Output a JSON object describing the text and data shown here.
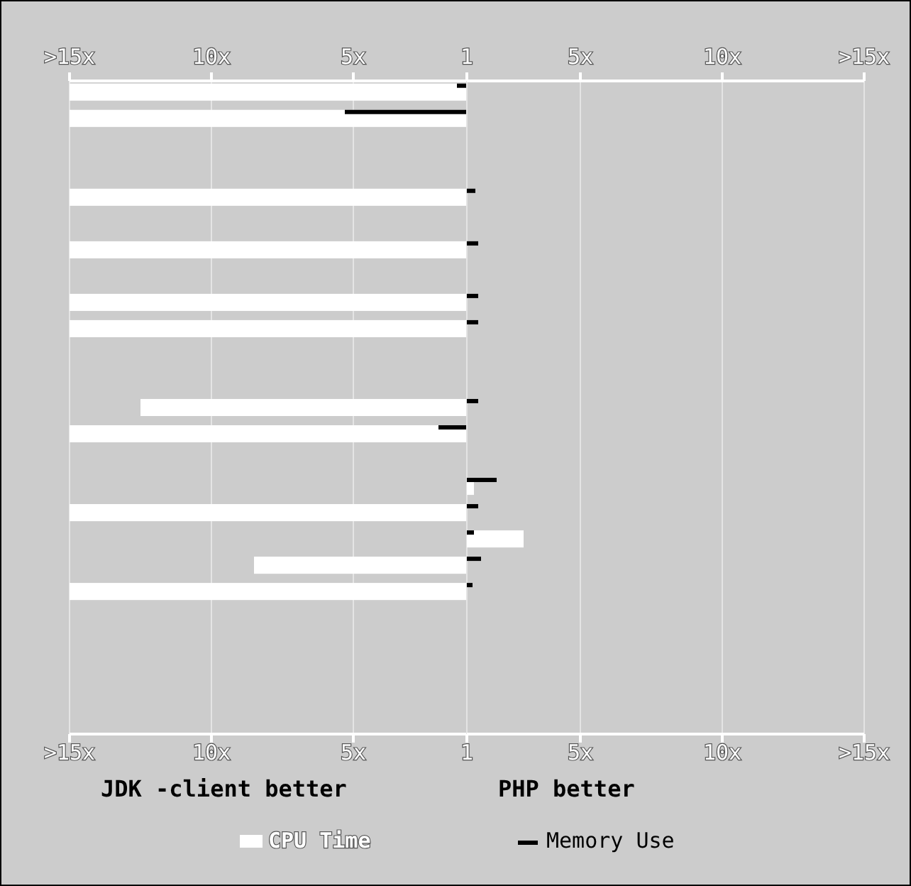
{
  "chart_data": [
    {
      "type": "bar",
      "orientation": "horizontal",
      "categories": [
        null,
        null,
        null,
        null,
        null,
        null,
        null,
        null,
        null,
        null,
        null,
        null,
        null,
        null,
        null,
        null,
        null,
        null,
        null,
        null,
        null,
        null,
        null,
        null,
        null
      ],
      "series": [
        {
          "name": "CPU Time",
          "color": "#ffffff",
          "values": [
            15,
            15,
            null,
            null,
            15,
            null,
            15,
            null,
            15,
            15,
            null,
            null,
            12.5,
            15,
            null,
            null,
            15,
            null,
            8.5,
            15,
            null,
            null,
            null,
            null,
            null
          ]
        },
        {
          "name": "Memory Use",
          "color": "#000000",
          "values": [
            1.35,
            5.3,
            null,
            null,
            null,
            null,
            null,
            null,
            null,
            null,
            null,
            null,
            null,
            2.0,
            null,
            null,
            null,
            null,
            null,
            null,
            null,
            null,
            null,
            null,
            null
          ]
        }
      ],
      "xlim": [
        15,
        1
      ],
      "xticks": [
        {
          "value": 15,
          "label": ">15x"
        },
        {
          "value": 10,
          "label": "10x"
        },
        {
          "value": 5,
          "label": "5x"
        },
        {
          "value": 1,
          "label": null
        }
      ],
      "x2lim": [
        15,
        1
      ],
      "x2ticks": [
        {
          "value": 15,
          "label": ">15x"
        },
        {
          "value": 10,
          "label": "10x"
        },
        {
          "value": 5,
          "label": "5x"
        },
        {
          "value": 1,
          "label": null
        }
      ],
      "grid": "x",
      "legend": "bottom",
      "annotations": [
        "JDK -client better"
      ]
    },
    {
      "type": "bar",
      "orientation": "horizontal",
      "categories": [
        null,
        null,
        null,
        null,
        null,
        null,
        null,
        null,
        null,
        null,
        null,
        null,
        null,
        null,
        null,
        null,
        null,
        null,
        null,
        null,
        null,
        null,
        null,
        null,
        null
      ],
      "series": [
        {
          "color": "#ffffff",
          "values": [
            null,
            null,
            null,
            null,
            null,
            null,
            null,
            null,
            null,
            null,
            null,
            null,
            null,
            null,
            null,
            1.25,
            null,
            3.0,
            null,
            null,
            null,
            null,
            null,
            null,
            null
          ]
        },
        {
          "color": "#000000",
          "values": [
            null,
            null,
            null,
            null,
            1.3,
            null,
            1.4,
            null,
            1.4,
            1.4,
            null,
            null,
            1.4,
            null,
            null,
            2.05,
            1.4,
            1.25,
            1.5,
            1.2,
            null,
            null,
            null,
            null,
            null
          ]
        }
      ],
      "xlim": [
        1,
        15
      ],
      "xticks": [
        {
          "value": 1,
          "label": "1"
        },
        {
          "value": 5,
          "label": "5x"
        },
        {
          "value": 10,
          "label": "10x"
        },
        {
          "value": 15,
          "label": ">15x"
        }
      ],
      "x2lim": [
        1,
        15
      ],
      "x2ticks": [
        {
          "value": 1,
          "label": "1"
        },
        {
          "value": 5,
          "label": "5x"
        },
        {
          "value": 10,
          "label": "10x"
        },
        {
          "value": 15,
          "label": ">15x"
        }
      ],
      "grid": "x",
      "annotations": [
        "PHP better"
      ]
    }
  ]
}
